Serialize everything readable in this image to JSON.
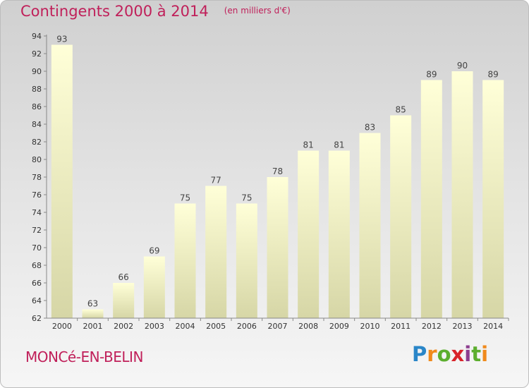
{
  "title": "Contingents 2000 à 2014",
  "unit": "(en milliers d'€)",
  "commune": "MONCé-EN-BELIN",
  "logo": {
    "text": "Proxiti",
    "letters": [
      "P",
      "r",
      "o",
      "x",
      "i",
      "t",
      "i"
    ]
  },
  "colors": {
    "accent": "#c0205a",
    "bar_top": "#ffffd8",
    "bar_bottom": "#d6d6a6",
    "axis": "#888888"
  },
  "chart_data": {
    "type": "bar",
    "title": "Contingents 2000 à 2014",
    "subtitle": "(en milliers d'€)",
    "xlabel": "",
    "ylabel": "",
    "categories": [
      "2000",
      "2001",
      "2002",
      "2003",
      "2004",
      "2005",
      "2006",
      "2007",
      "2008",
      "2009",
      "2010",
      "2011",
      "2012",
      "2013",
      "2014"
    ],
    "values": [
      93,
      63,
      66,
      69,
      75,
      77,
      75,
      78,
      81,
      81,
      83,
      85,
      89,
      90,
      89
    ],
    "ylim": [
      62,
      94
    ],
    "yticks": [
      62,
      64,
      66,
      68,
      70,
      72,
      74,
      76,
      78,
      80,
      82,
      84,
      86,
      88,
      90,
      92,
      94
    ],
    "grid": false,
    "legend": "none"
  }
}
